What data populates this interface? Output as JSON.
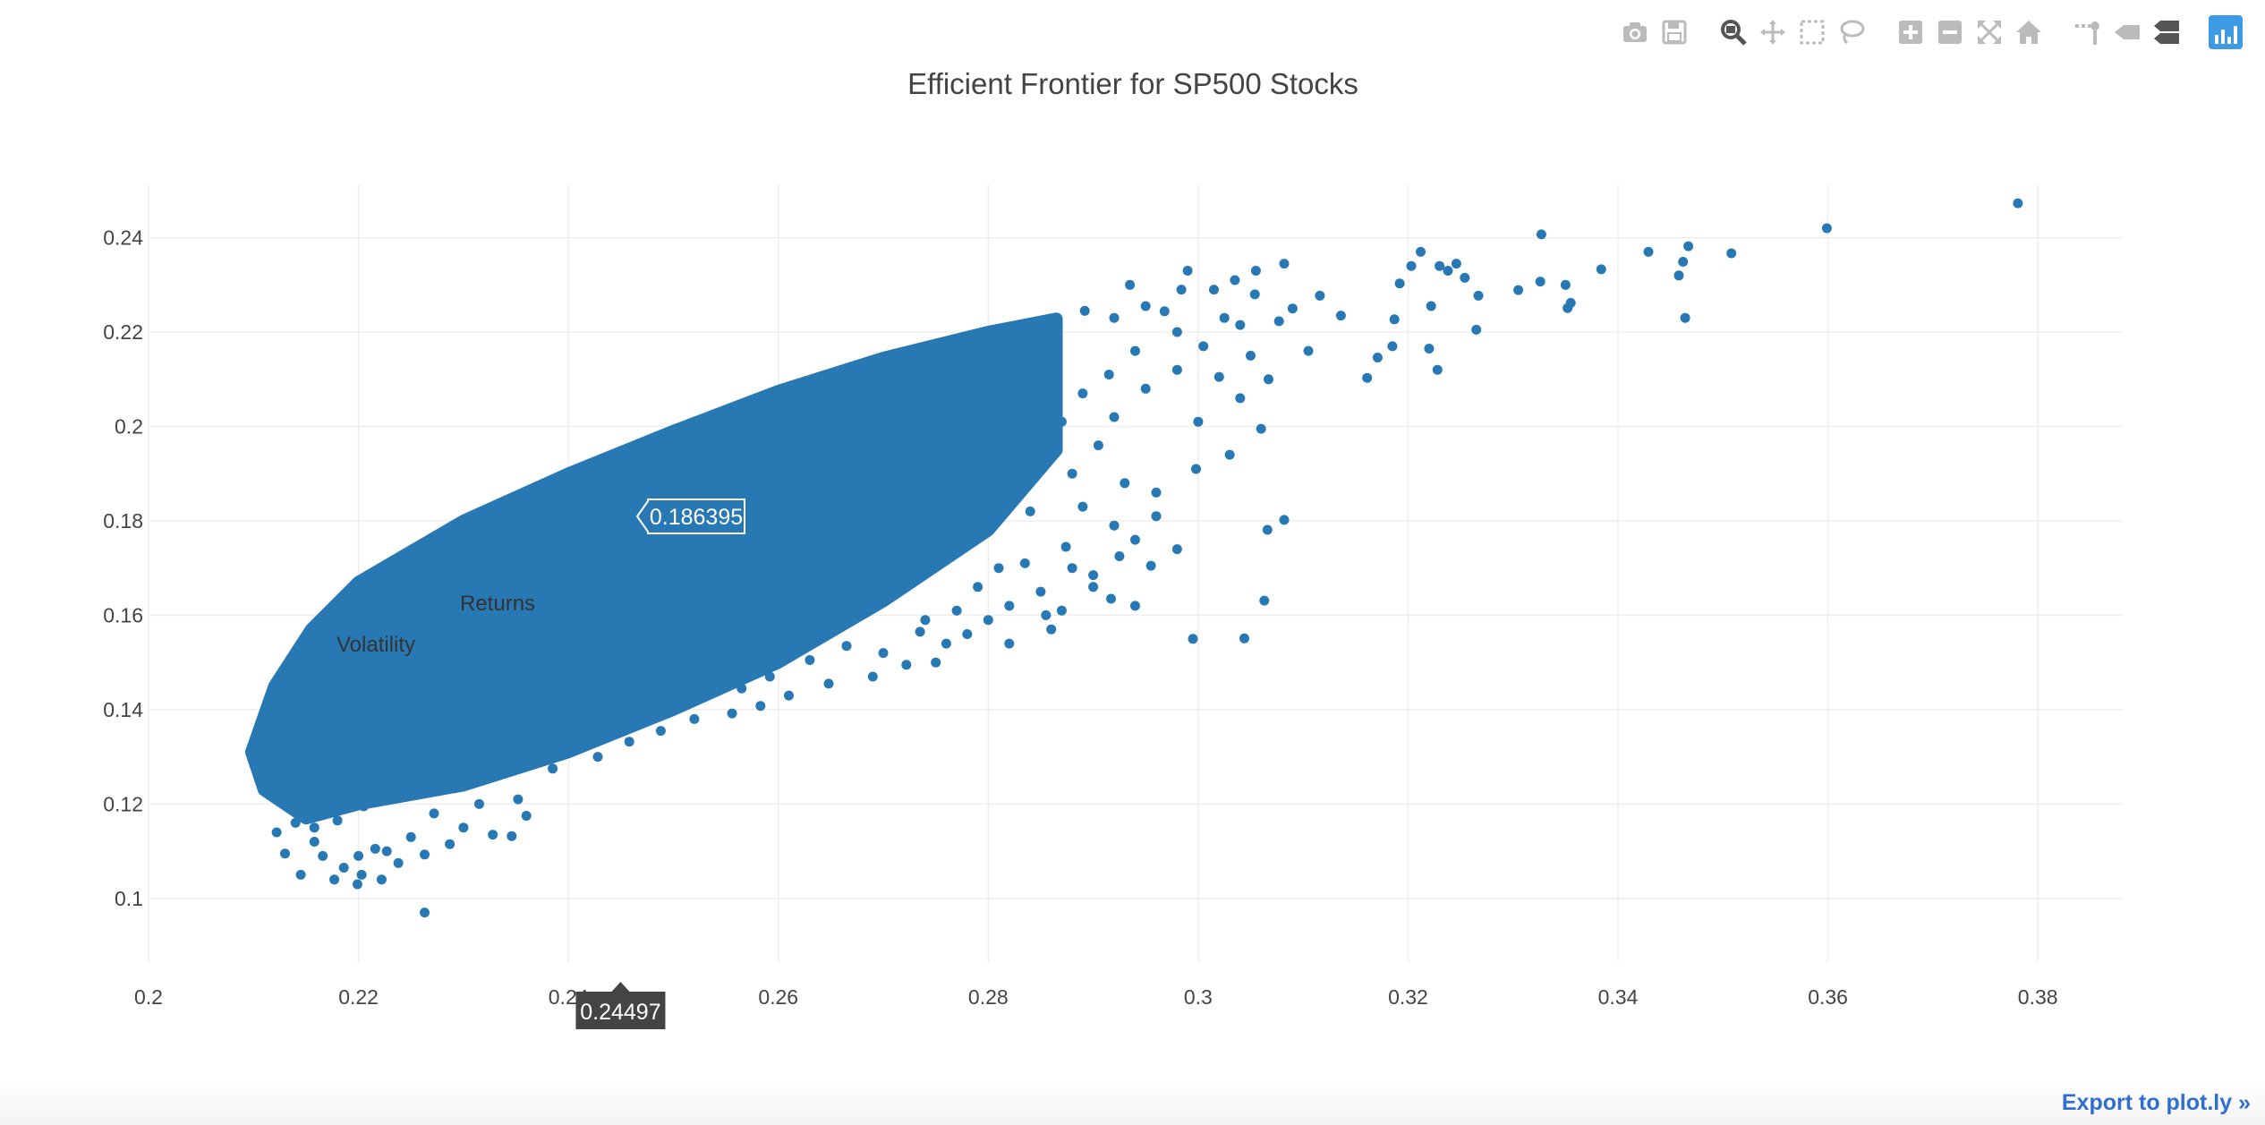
{
  "modebar": {
    "buttons": [
      {
        "name": "camera-icon",
        "title": "Download plot as a png"
      },
      {
        "name": "save-icon",
        "title": "Save and edit plot in cloud"
      },
      {
        "name": "zoom-icon",
        "title": "Zoom",
        "active": true
      },
      {
        "name": "pan-icon",
        "title": "Pan"
      },
      {
        "name": "box-select-icon",
        "title": "Box Select"
      },
      {
        "name": "lasso-select-icon",
        "title": "Lasso Select"
      },
      {
        "name": "zoom-in-icon",
        "title": "Zoom in"
      },
      {
        "name": "zoom-out-icon",
        "title": "Zoom out"
      },
      {
        "name": "autoscale-icon",
        "title": "Autoscale"
      },
      {
        "name": "reset-axes-icon",
        "title": "Reset axes"
      },
      {
        "name": "toggle-spike-lines-icon",
        "title": "Toggle Spike Lines"
      },
      {
        "name": "show-closest-icon",
        "title": "Show closest data on hover"
      },
      {
        "name": "compare-data-icon",
        "title": "Compare data on hover"
      },
      {
        "name": "plotly-logo-icon",
        "title": "Produced with Plotly"
      }
    ]
  },
  "export_link": "Export to plot.ly »",
  "colors": {
    "marker": "#2878b4",
    "grid": "#eeeeee",
    "text": "#444444",
    "tooltip_bg": "#444444"
  },
  "chart_data": {
    "type": "scatter",
    "title": "Efficient Frontier for SP500 Stocks",
    "xlabel": "",
    "ylabel": "",
    "xlim": [
      0.2,
      0.388
    ],
    "ylim": [
      0.0865,
      0.2513
    ],
    "x_ticks": [
      "0.2",
      "0.22",
      "0.24",
      "0.26",
      "0.28",
      "0.3",
      "0.32",
      "0.34",
      "0.36",
      "0.38"
    ],
    "y_ticks": [
      "0.1",
      "0.12",
      "0.14",
      "0.16",
      "0.18",
      "0.2",
      "0.22",
      "0.24"
    ],
    "grid": true,
    "cloud": {
      "description": "dense cloud of simulated portfolios bounded by the efficient frontier",
      "frontier_left_point": [
        0.2098,
        0.131
      ],
      "frontier_upper_edge": [
        [
          0.2098,
          0.131
        ],
        [
          0.212,
          0.145
        ],
        [
          0.2155,
          0.157
        ],
        [
          0.22,
          0.167
        ],
        [
          0.23,
          0.18
        ],
        [
          0.24,
          0.19
        ],
        [
          0.25,
          0.199
        ],
        [
          0.26,
          0.2075
        ],
        [
          0.27,
          0.2145
        ],
        [
          0.28,
          0.22
        ],
        [
          0.2865,
          0.2228
        ]
      ],
      "lower_edge": [
        [
          0.2098,
          0.131
        ],
        [
          0.211,
          0.123
        ],
        [
          0.215,
          0.117
        ],
        [
          0.22,
          0.12
        ],
        [
          0.23,
          0.124
        ],
        [
          0.24,
          0.131
        ],
        [
          0.25,
          0.14
        ],
        [
          0.26,
          0.15
        ],
        [
          0.27,
          0.163
        ],
        [
          0.28,
          0.178
        ],
        [
          0.2865,
          0.195
        ],
        [
          0.2865,
          0.2228
        ]
      ]
    },
    "points": [
      [
        0.3781,
        0.2473
      ],
      [
        0.3599,
        0.242
      ],
      [
        0.3508,
        0.2367
      ],
      [
        0.3467,
        0.2382
      ],
      [
        0.3462,
        0.2349
      ],
      [
        0.3458,
        0.232
      ],
      [
        0.3464,
        0.223
      ],
      [
        0.3429,
        0.237
      ],
      [
        0.3384,
        0.2333
      ],
      [
        0.3355,
        0.2262
      ],
      [
        0.3352,
        0.2251
      ],
      [
        0.335,
        0.23
      ],
      [
        0.3327,
        0.2407
      ],
      [
        0.3326,
        0.2307
      ],
      [
        0.3305,
        0.2289
      ],
      [
        0.3267,
        0.2277
      ],
      [
        0.3265,
        0.2205
      ],
      [
        0.3254,
        0.2315
      ],
      [
        0.3246,
        0.2345
      ],
      [
        0.3238,
        0.233
      ],
      [
        0.323,
        0.234
      ],
      [
        0.3222,
        0.2255
      ],
      [
        0.322,
        0.2165
      ],
      [
        0.3228,
        0.212
      ],
      [
        0.3212,
        0.237
      ],
      [
        0.3203,
        0.234
      ],
      [
        0.3192,
        0.2303
      ],
      [
        0.3187,
        0.2227
      ],
      [
        0.3185,
        0.217
      ],
      [
        0.3171,
        0.2146
      ],
      [
        0.3161,
        0.2103
      ],
      [
        0.3136,
        0.2235
      ],
      [
        0.3116,
        0.2277
      ],
      [
        0.3077,
        0.2223
      ],
      [
        0.3067,
        0.21
      ],
      [
        0.3082,
        0.2345
      ],
      [
        0.3054,
        0.228
      ],
      [
        0.305,
        0.215
      ],
      [
        0.3025,
        0.223
      ],
      [
        0.304,
        0.206
      ],
      [
        0.3015,
        0.229
      ],
      [
        0.3,
        0.201
      ],
      [
        0.295,
        0.208
      ],
      [
        0.292,
        0.202
      ],
      [
        0.2905,
        0.196
      ],
      [
        0.293,
        0.188
      ],
      [
        0.288,
        0.19
      ],
      [
        0.296,
        0.181
      ],
      [
        0.294,
        0.176
      ],
      [
        0.2955,
        0.1705
      ],
      [
        0.3082,
        0.1802
      ],
      [
        0.3066,
        0.1781
      ],
      [
        0.3063,
        0.1631
      ],
      [
        0.3044,
        0.1551
      ],
      [
        0.2995,
        0.155
      ],
      [
        0.2984,
        0.229
      ],
      [
        0.2968,
        0.2244
      ],
      [
        0.2925,
        0.1725
      ],
      [
        0.29,
        0.1685
      ],
      [
        0.287,
        0.161
      ],
      [
        0.288,
        0.17
      ],
      [
        0.286,
        0.157
      ],
      [
        0.285,
        0.165
      ],
      [
        0.2835,
        0.171
      ],
      [
        0.282,
        0.162
      ],
      [
        0.281,
        0.17
      ],
      [
        0.28,
        0.159
      ],
      [
        0.279,
        0.166
      ],
      [
        0.277,
        0.161
      ],
      [
        0.276,
        0.154
      ],
      [
        0.275,
        0.15
      ],
      [
        0.2735,
        0.1565
      ],
      [
        0.2722,
        0.1495
      ],
      [
        0.27,
        0.152
      ],
      [
        0.269,
        0.147
      ],
      [
        0.2665,
        0.1535
      ],
      [
        0.2648,
        0.1455
      ],
      [
        0.263,
        0.1505
      ],
      [
        0.261,
        0.143
      ],
      [
        0.2592,
        0.147
      ],
      [
        0.2583,
        0.1408
      ],
      [
        0.2565,
        0.1445
      ],
      [
        0.2556,
        0.1392
      ],
      [
        0.2533,
        0.143
      ],
      [
        0.252,
        0.138
      ],
      [
        0.2505,
        0.141
      ],
      [
        0.2488,
        0.1355
      ],
      [
        0.2475,
        0.139
      ],
      [
        0.2458,
        0.1332
      ],
      [
        0.2443,
        0.1365
      ],
      [
        0.2428,
        0.13
      ],
      [
        0.2415,
        0.1335
      ],
      [
        0.2398,
        0.1315
      ],
      [
        0.2385,
        0.1275
      ],
      [
        0.2368,
        0.13
      ],
      [
        0.236,
        0.1175
      ],
      [
        0.2352,
        0.121
      ],
      [
        0.2346,
        0.1132
      ],
      [
        0.2328,
        0.1135
      ],
      [
        0.2315,
        0.12
      ],
      [
        0.23,
        0.115
      ],
      [
        0.2287,
        0.1115
      ],
      [
        0.2272,
        0.118
      ],
      [
        0.2263,
        0.1093
      ],
      [
        0.225,
        0.113
      ],
      [
        0.2238,
        0.1075
      ],
      [
        0.2227,
        0.11
      ],
      [
        0.2222,
        0.104
      ],
      [
        0.2216,
        0.1105
      ],
      [
        0.2203,
        0.105
      ],
      [
        0.2199,
        0.103
      ],
      [
        0.2186,
        0.1065
      ],
      [
        0.2177,
        0.104
      ],
      [
        0.2166,
        0.109
      ],
      [
        0.2158,
        0.112
      ],
      [
        0.2145,
        0.105
      ],
      [
        0.213,
        0.1095
      ],
      [
        0.2122,
        0.114
      ],
      [
        0.2263,
        0.097
      ],
      [
        0.22,
        0.109
      ],
      [
        0.272,
        0.166
      ],
      [
        0.274,
        0.159
      ],
      [
        0.278,
        0.156
      ],
      [
        0.282,
        0.154
      ],
      [
        0.2855,
        0.16
      ],
      [
        0.29,
        0.166
      ],
      [
        0.294,
        0.162
      ],
      [
        0.298,
        0.174
      ],
      [
        0.2917,
        0.1635
      ],
      [
        0.2874,
        0.1745
      ],
      [
        0.284,
        0.182
      ],
      [
        0.289,
        0.183
      ],
      [
        0.292,
        0.179
      ],
      [
        0.296,
        0.186
      ],
      [
        0.2998,
        0.191
      ],
      [
        0.303,
        0.194
      ],
      [
        0.306,
        0.1995
      ],
      [
        0.298,
        0.212
      ],
      [
        0.3005,
        0.217
      ],
      [
        0.302,
        0.2105
      ],
      [
        0.294,
        0.216
      ],
      [
        0.2915,
        0.211
      ],
      [
        0.289,
        0.207
      ],
      [
        0.287,
        0.201
      ],
      [
        0.292,
        0.223
      ],
      [
        0.295,
        0.2255
      ],
      [
        0.298,
        0.22
      ],
      [
        0.304,
        0.2215
      ],
      [
        0.309,
        0.225
      ],
      [
        0.3105,
        0.216
      ],
      [
        0.3055,
        0.233
      ],
      [
        0.3035,
        0.231
      ],
      [
        0.299,
        0.233
      ],
      [
        0.2935,
        0.23
      ],
      [
        0.2892,
        0.2245
      ],
      [
        0.277,
        0.189
      ],
      [
        0.28,
        0.192
      ],
      [
        0.276,
        0.176
      ],
      [
        0.2732,
        0.181
      ],
      [
        0.28,
        0.183
      ],
      [
        0.27,
        0.176
      ],
      [
        0.267,
        0.169
      ],
      [
        0.264,
        0.161
      ],
      [
        0.2685,
        0.161
      ],
      [
        0.265,
        0.172
      ],
      [
        0.26,
        0.156
      ],
      [
        0.258,
        0.153
      ],
      [
        0.2545,
        0.15
      ],
      [
        0.25,
        0.147
      ],
      [
        0.247,
        0.144
      ],
      [
        0.244,
        0.141
      ],
      [
        0.241,
        0.138
      ],
      [
        0.2375,
        0.136
      ],
      [
        0.2345,
        0.1335
      ],
      [
        0.2312,
        0.1305
      ],
      [
        0.2285,
        0.1275
      ],
      [
        0.2255,
        0.1245
      ],
      [
        0.223,
        0.1225
      ],
      [
        0.2205,
        0.1195
      ],
      [
        0.218,
        0.1165
      ],
      [
        0.2158,
        0.115
      ],
      [
        0.214,
        0.116
      ],
      [
        0.281,
        0.2
      ],
      [
        0.285,
        0.205
      ],
      [
        0.283,
        0.196
      ]
    ],
    "hover": {
      "y_label": "0.186395",
      "x_label": "0.24497",
      "point": [
        0.24497,
        0.186395
      ],
      "annotation_returns": "Returns",
      "annotation_volatility": "Volatility"
    }
  }
}
